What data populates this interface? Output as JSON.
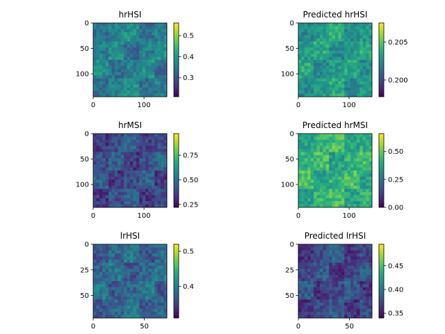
{
  "chart_data": [
    {
      "type": "heatmap",
      "title": "hrHSI",
      "xlim": [
        0,
        145
      ],
      "ylim": [
        0,
        145
      ],
      "xticks": [
        0,
        100
      ],
      "yticks": [
        0,
        50,
        100
      ],
      "colorbar": {
        "range": [
          0.21,
          0.56
        ],
        "ticks": [
          0.3,
          0.4,
          0.5
        ],
        "tick_labels": [
          "0.3",
          "0.4",
          "0.5"
        ]
      },
      "colormap": "viridis",
      "typical_value": 0.36
    },
    {
      "type": "heatmap",
      "title": "Predicted hrHSI",
      "xlim": [
        0,
        145
      ],
      "ylim": [
        0,
        145
      ],
      "xticks": [
        0,
        100
      ],
      "yticks": [
        0,
        50,
        100
      ],
      "colorbar": {
        "range": [
          0.1978,
          0.2075
        ],
        "ticks": [
          0.2,
          0.205
        ],
        "tick_labels": [
          "0.200",
          "0.205"
        ]
      },
      "colormap": "viridis",
      "typical_value": 0.203
    },
    {
      "type": "heatmap",
      "title": "hrMSI",
      "xlim": [
        0,
        145
      ],
      "ylim": [
        0,
        145
      ],
      "xticks": [
        0,
        100
      ],
      "yticks": [
        0,
        50,
        100
      ],
      "colorbar": {
        "range": [
          0.22,
          0.97
        ],
        "ticks": [
          0.25,
          0.5,
          0.75
        ],
        "tick_labels": [
          "0.25",
          "0.50",
          "0.75"
        ]
      },
      "colormap": "viridis",
      "typical_value": 0.4
    },
    {
      "type": "heatmap",
      "title": "Predicted hrMSI",
      "xlim": [
        0,
        145
      ],
      "ylim": [
        0,
        145
      ],
      "xticks": [
        0,
        100
      ],
      "yticks": [
        0,
        50,
        100
      ],
      "colorbar": {
        "range": [
          0.0,
          0.66
        ],
        "ticks": [
          0.0,
          0.25,
          0.5
        ],
        "tick_labels": [
          "0.00",
          "0.25",
          "0.50"
        ]
      },
      "colormap": "viridis",
      "typical_value": 0.42
    },
    {
      "type": "heatmap",
      "title": "lrHSI",
      "xlim": [
        0,
        72
      ],
      "ylim": [
        0,
        72
      ],
      "xticks": [
        0,
        50
      ],
      "yticks": [
        0,
        25,
        50
      ],
      "colorbar": {
        "range": [
          0.31,
          0.52
        ],
        "ticks": [
          0.4,
          0.5
        ],
        "tick_labels": [
          "0.4",
          "0.5"
        ]
      },
      "colormap": "viridis",
      "typical_value": 0.38
    },
    {
      "type": "heatmap",
      "title": "Predicted lrHSI",
      "xlim": [
        0,
        72
      ],
      "ylim": [
        0,
        72
      ],
      "xticks": [
        0,
        50
      ],
      "yticks": [
        0,
        25,
        50
      ],
      "colorbar": {
        "range": [
          0.34,
          0.495
        ],
        "ticks": [
          0.35,
          0.4,
          0.45
        ],
        "tick_labels": [
          "0.35",
          "0.40",
          "0.45"
        ]
      },
      "colormap": "viridis",
      "typical_value": 0.375
    }
  ]
}
